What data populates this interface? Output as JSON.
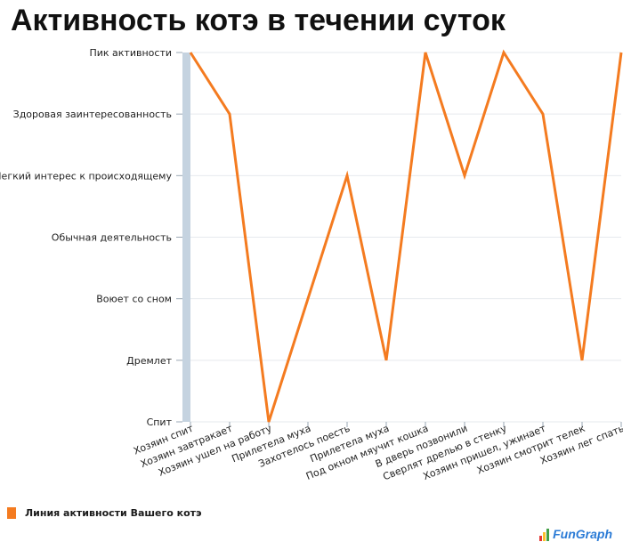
{
  "title": "Активность котэ в течении суток",
  "chart_data": {
    "type": "line",
    "y_levels": [
      "Спит",
      "Дремлет",
      "Воюет со сном",
      "Обычная деятельность",
      "Легкий интерес к происходящему",
      "Здоровая заинтересованность",
      "Пик активности"
    ],
    "categories": [
      "Хозяин спит",
      "Хозяин завтракает",
      "Хозяин ушел на работу",
      "Прилетела муха",
      "Захотелось поесть",
      "Прилетела муха",
      "Под окном мяучит кошка",
      "В дверь позвонили",
      "Сверлят дрелью в стенку",
      "Хозяин пришел, ужинает",
      "Хозяин смотрит телек",
      "Хозяин лег спать"
    ],
    "series": [
      {
        "name": "Линия активности Вашего котэ",
        "values": [
          6,
          5,
          0,
          2,
          4,
          1,
          6,
          4,
          6,
          5,
          1,
          6
        ],
        "color": "#f47b20"
      }
    ],
    "grid": true,
    "legend": "bottom-left"
  },
  "brand": {
    "part1": "Fun",
    "part2": "Graph"
  }
}
